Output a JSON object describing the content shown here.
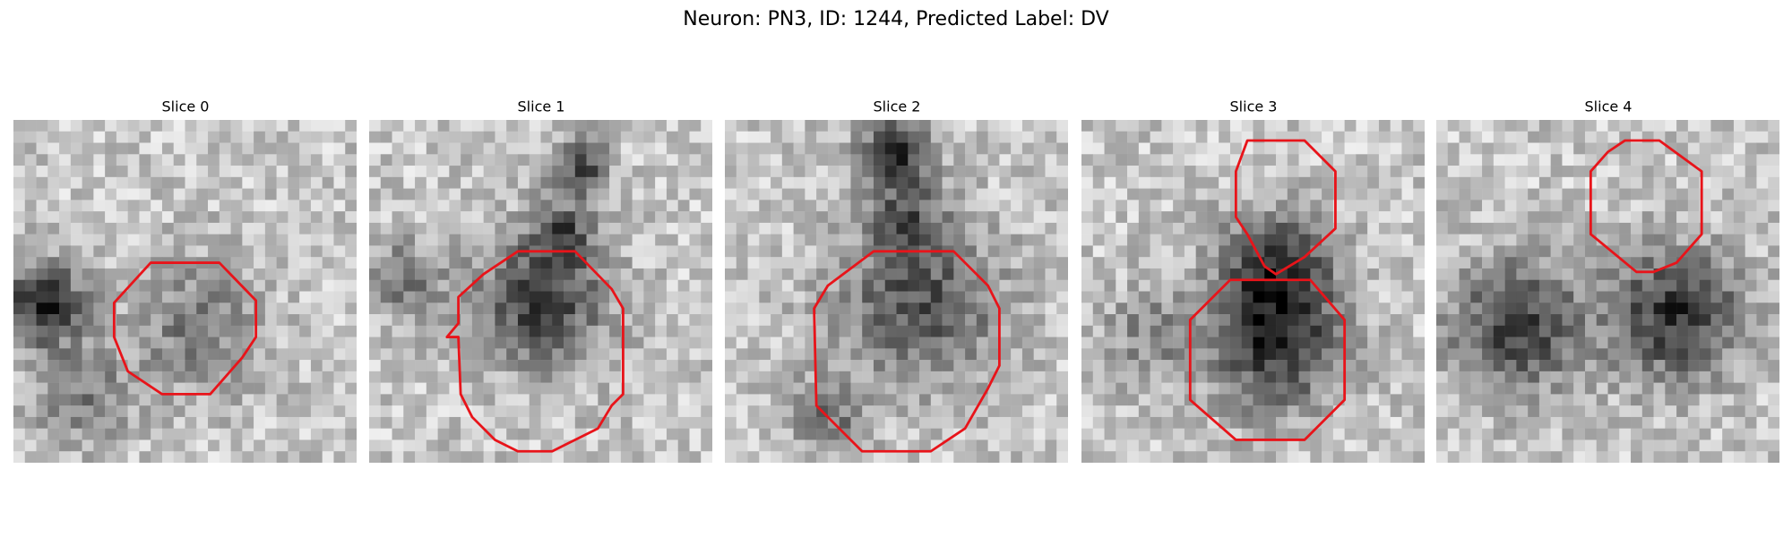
{
  "header": {
    "title": "Neuron: PN3, ID: 1244, Predicted Label: DV"
  },
  "panels": [
    {
      "title": "Slice 0"
    },
    {
      "title": "Slice 1"
    },
    {
      "title": "Slice 2"
    },
    {
      "title": "Slice 3"
    },
    {
      "title": "Slice 4"
    }
  ]
}
